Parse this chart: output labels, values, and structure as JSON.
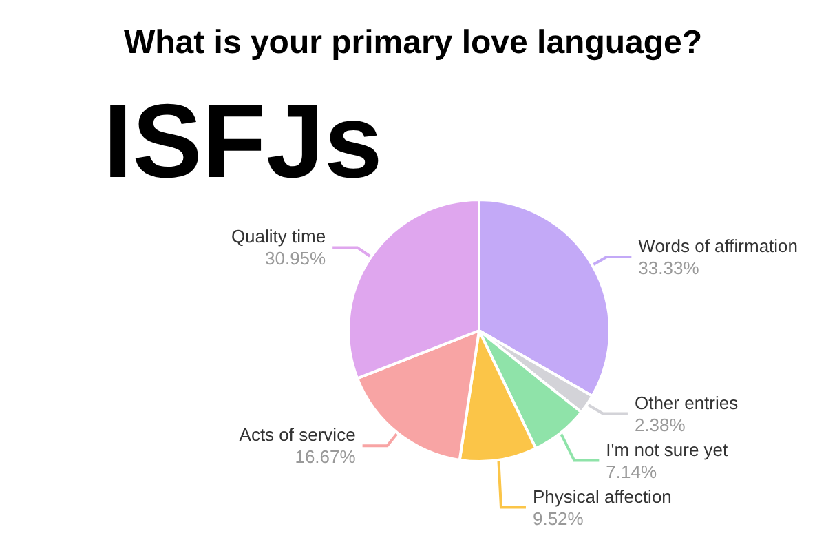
{
  "chart_data": {
    "type": "pie",
    "title": "What is your primary love language?",
    "subtitle": "ISFJs",
    "categories": [
      "Words of affirmation",
      "Other entries",
      "I'm not sure yet",
      "Physical affection",
      "Acts of service",
      "Quality time"
    ],
    "values": [
      33.33,
      2.38,
      7.14,
      9.52,
      16.67,
      30.95
    ],
    "value_labels": [
      "33.33%",
      "2.38%",
      "7.14%",
      "9.52%",
      "16.67%",
      "30.95%"
    ],
    "colors": [
      "#c3a9f7",
      "#d3d3d8",
      "#8fe3a9",
      "#fbc548",
      "#f8a4a4",
      "#dfa6ee"
    ],
    "legend": false
  }
}
